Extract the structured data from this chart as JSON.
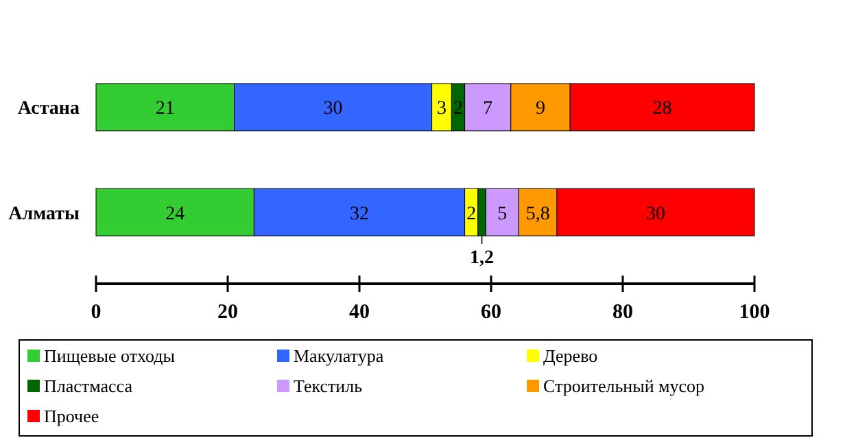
{
  "chart_data": {
    "type": "bar",
    "orientation": "horizontal",
    "stacked": true,
    "categories": [
      "Астана",
      "Алматы"
    ],
    "series": [
      {
        "name": "Пищевые отходы",
        "color": "#33cc33",
        "values": [
          21,
          24
        ],
        "value_labels": [
          "21",
          "24"
        ]
      },
      {
        "name": "Макулатура",
        "color": "#3366ff",
        "values": [
          30,
          32
        ],
        "value_labels": [
          "30",
          "32"
        ]
      },
      {
        "name": "Дерево",
        "color": "#ffff00",
        "values": [
          3,
          2
        ],
        "value_labels": [
          "3",
          "2"
        ]
      },
      {
        "name": "Пластмасса",
        "color": "#006600",
        "values": [
          2,
          1.2
        ],
        "value_labels": [
          "2",
          "1,2"
        ]
      },
      {
        "name": "Текстиль",
        "color": "#cc99ff",
        "values": [
          7,
          5
        ],
        "value_labels": [
          "7",
          "5"
        ]
      },
      {
        "name": "Строительный мусор",
        "color": "#ff9900",
        "values": [
          9,
          5.8
        ],
        "value_labels": [
          "9",
          "5,8"
        ]
      },
      {
        "name": "Прочее",
        "color": "#ff0000",
        "values": [
          28,
          30
        ],
        "value_labels": [
          "28",
          "30"
        ]
      }
    ],
    "xlim": [
      0,
      100
    ],
    "xticks": [
      0,
      20,
      40,
      60,
      80,
      100
    ],
    "grid": false,
    "legend": "bottom"
  }
}
